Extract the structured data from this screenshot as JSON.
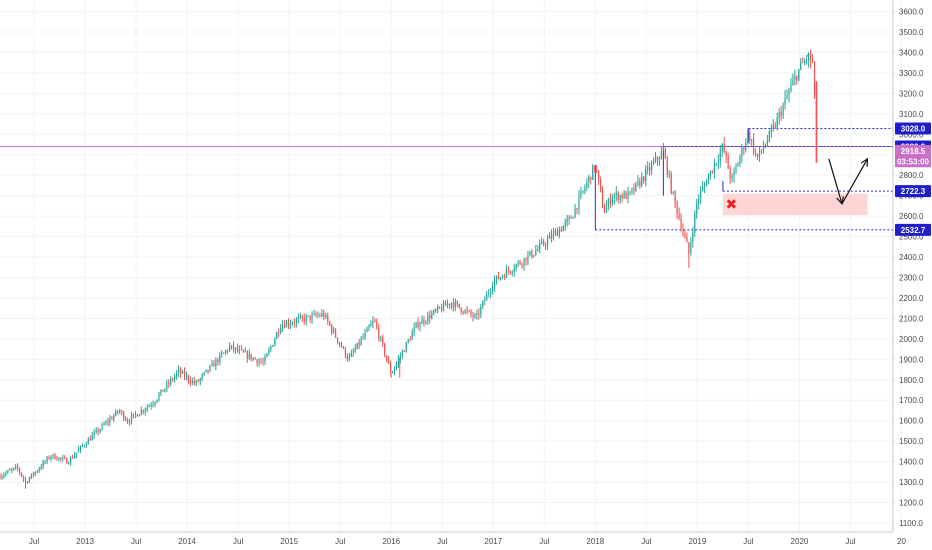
{
  "chart_data": {
    "type": "candlestick",
    "y_axis": {
      "ticks": [
        "3600.0",
        "3500.0",
        "3400.0",
        "3300.0",
        "3200.0",
        "3100.0",
        "3000.0",
        "2900.0",
        "2800.0",
        "2700.0",
        "2600.0",
        "2500.0",
        "2400.0",
        "2300.0",
        "2200.0",
        "2100.0",
        "2000.0",
        "1900.0",
        "1800.0",
        "1700.0",
        "1600.0",
        "1500.0",
        "1400.0",
        "1300.0",
        "1200.0",
        "1100.0"
      ],
      "range": [
        1050,
        3640
      ],
      "position": "right"
    },
    "x_axis": {
      "ticks": [
        "Jul",
        "2013",
        "Jul",
        "2014",
        "Jul",
        "2015",
        "Jul",
        "2016",
        "Jul",
        "2017",
        "Jul",
        "2018",
        "Jul",
        "2019",
        "Jul",
        "2020",
        "Jul",
        "20"
      ],
      "range": [
        "2012-03",
        "2020-12"
      ]
    },
    "price_labels": [
      {
        "text": "3028.0",
        "value": 3028.0,
        "color": "#1e1ecc"
      },
      {
        "text": "2939.9",
        "value": 2939.9,
        "color": "#1e1ecc"
      },
      {
        "text": "2918.5",
        "value": 2918.5,
        "color": "#c870c8"
      },
      {
        "text": "03:53:00",
        "value": 2868,
        "color": "#c870c8"
      },
      {
        "text": "2722.3",
        "value": 2722.3,
        "color": "#1e1ecc"
      },
      {
        "text": "2532.7",
        "value": 2532.7,
        "color": "#1e1ecc"
      }
    ],
    "horizontal_lines": [
      {
        "value": 2939.9,
        "from": "2012-03",
        "color": "#d070d0",
        "style": "solid"
      },
      {
        "value": 3028.0,
        "from": "2019-07",
        "color": "#2b2bd8",
        "style": "dashed"
      },
      {
        "value": 2939.9,
        "from": "2018-09",
        "color": "#2b2bd8",
        "style": "dashed"
      },
      {
        "value": 2722.3,
        "from": "2019-04",
        "color": "#2b2bd8",
        "style": "dashed"
      },
      {
        "value": 2532.7,
        "from": "2018-01",
        "color": "#2b2bd8",
        "style": "dashed"
      }
    ],
    "zones": [
      {
        "from": "2019-04",
        "to": "2020-09",
        "low": 2605,
        "high": 2710,
        "color": "#ffcfcf"
      }
    ],
    "series": {
      "close_anchors": [
        [
          "2012-03",
          1330
        ],
        [
          "2012-05",
          1370
        ],
        [
          "2012-06",
          1300
        ],
        [
          "2012-09",
          1430
        ],
        [
          "2012-11",
          1400
        ],
        [
          "2013-01",
          1490
        ],
        [
          "2013-05",
          1650
        ],
        [
          "2013-06",
          1600
        ],
        [
          "2013-09",
          1690
        ],
        [
          "2013-12",
          1840
        ],
        [
          "2014-02",
          1780
        ],
        [
          "2014-06",
          1960
        ],
        [
          "2014-10",
          1880
        ],
        [
          "2014-12",
          2070
        ],
        [
          "2015-05",
          2120
        ],
        [
          "2015-08",
          1900
        ],
        [
          "2015-11",
          2090
        ],
        [
          "2016-01",
          1830
        ],
        [
          "2016-04",
          2070
        ],
        [
          "2016-08",
          2180
        ],
        [
          "2016-11",
          2100
        ],
        [
          "2017-01",
          2280
        ],
        [
          "2017-06",
          2430
        ],
        [
          "2017-10",
          2580
        ],
        [
          "2018-01",
          2850
        ],
        [
          "2018-02",
          2620
        ],
        [
          "2018-03",
          2700
        ],
        [
          "2018-05",
          2700
        ],
        [
          "2018-09",
          2920
        ],
        [
          "2018-10",
          2720
        ],
        [
          "2018-12",
          2420
        ],
        [
          "2019-01",
          2680
        ],
        [
          "2019-04",
          2940
        ],
        [
          "2019-05",
          2770
        ],
        [
          "2019-07",
          3010
        ],
        [
          "2019-08",
          2880
        ],
        [
          "2019-10",
          3030
        ],
        [
          "2019-12",
          3230
        ],
        [
          "2020-01",
          3320
        ],
        [
          "2020-02",
          3380
        ],
        [
          "2020-02-20",
          3340
        ],
        [
          "2020-03",
          2918
        ]
      ],
      "lows": [
        [
          "2012-06",
          1267
        ],
        [
          "2016-01",
          1810
        ],
        [
          "2016-02",
          1810
        ],
        [
          "2018-12",
          2346
        ]
      ],
      "highs": [
        [
          "2020-02",
          3393
        ]
      ]
    },
    "annotations": [
      {
        "type": "x-marker",
        "date": "2019-05",
        "value": 2660,
        "color": "#ee2020"
      },
      {
        "type": "arrow",
        "from": [
          "2020-04-15",
          2880
        ],
        "to": [
          "2020-06",
          2660
        ],
        "color": "#111111"
      },
      {
        "type": "arrow",
        "from": [
          "2020-06",
          2660
        ],
        "to": [
          "2020-09",
          2880
        ],
        "color": "#111111"
      }
    ],
    "grid": true,
    "up_color": "#26a69a",
    "down_color": "#ef5350"
  }
}
